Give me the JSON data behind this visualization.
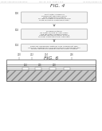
{
  "header_left": "Patent Application Publication",
  "header_mid": "May 26, 2011  Sheet 4 of 8",
  "header_right": "US 2011/0123312 A1",
  "fig4_label": "FIG. 4",
  "fig6_label": "FIG. 6",
  "step1_num": "100",
  "step1_text": "Blast Outer Surface of\nComponent Wall from Inside\nWith Hardenable Material\nTo Apply Streams of Diffusion Nuclei\nTo Be Formed in Component Wall",
  "step2_num": "102",
  "step2_text": "Disperse Material\nOn Outer Surface of Inner Layer\nand the Outer Surface of Each\nCoating Thereupon Radial Surface\nTo Form Component Wall Laminate",
  "step3_num": "104",
  "step3_text": "Removes Hardenable Material From Component Wall\nInner Wall Diffusion Nuclei Is Retained On Component Wall\nWhere Hardenable Material Was Previously Located",
  "box_color": "#f5f5f5",
  "box_edge": "#999999",
  "background": "#ffffff",
  "arrow_color": "#666666",
  "text_color": "#444444",
  "header_color": "#aaaaaa"
}
